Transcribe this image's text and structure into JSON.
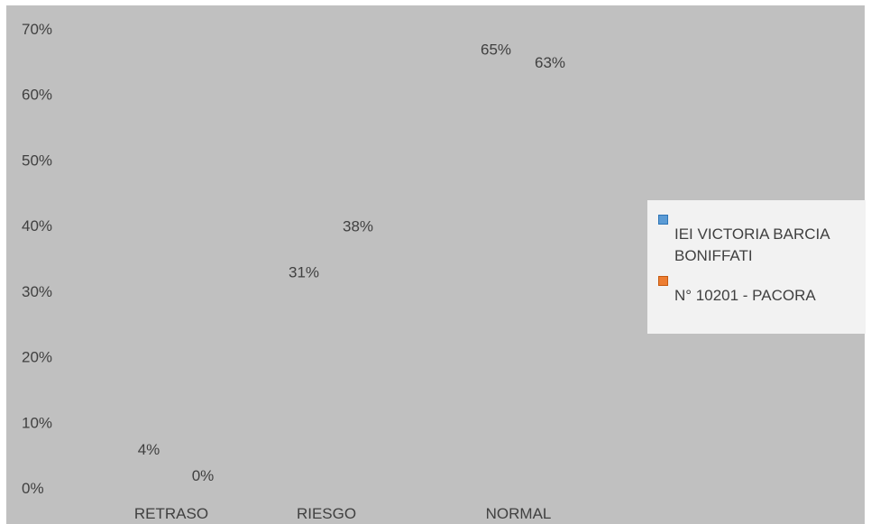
{
  "chart_data": {
    "type": "bar",
    "categories": [
      "RETRASO",
      "RIESGO",
      "NORMAL"
    ],
    "series": [
      {
        "name": "IEI VICTORIA BARCIA BONIFFATI",
        "values": [
          4,
          31,
          65
        ],
        "labels": [
          "4%",
          "31%",
          "65%"
        ],
        "color": "#5b9bd5"
      },
      {
        "name": "N° 10201 - PACORA",
        "values": [
          0,
          38,
          63
        ],
        "labels": [
          "0%",
          "38%",
          "63%"
        ],
        "color": "#ed7d31"
      }
    ],
    "ylim": [
      0,
      70
    ],
    "yticks": [
      0,
      10,
      20,
      30,
      40,
      50,
      60,
      70
    ],
    "ytick_labels": [
      "0%",
      "10%",
      "20%",
      "30%",
      "40%",
      "50%",
      "60%",
      "70%"
    ],
    "legend_position": "right",
    "grid": false,
    "background": "#c0c0c0"
  },
  "legend": {
    "items": [
      {
        "label": "IEI VICTORIA BARCIA BONIFFATI",
        "color": "#5b9bd5"
      },
      {
        "label": "N° 10201 - PACORA",
        "color": "#ed7d31"
      }
    ]
  }
}
